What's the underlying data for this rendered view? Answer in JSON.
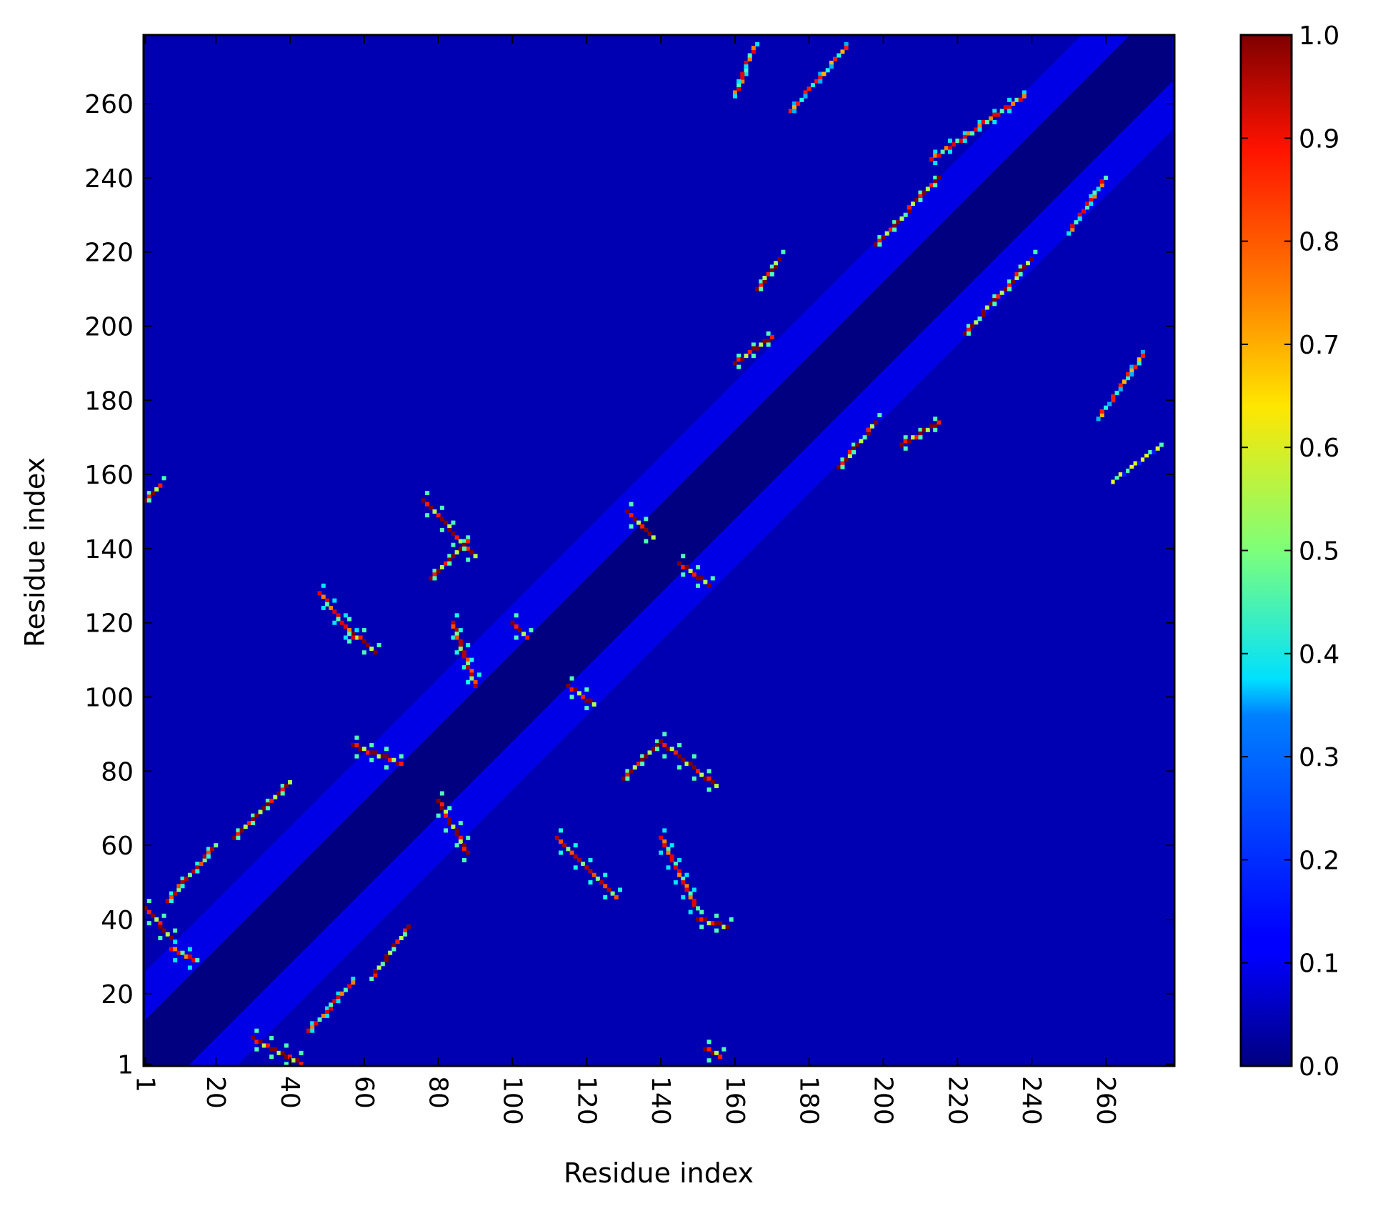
{
  "chart_data": {
    "type": "heatmap",
    "title": "",
    "xlabel": "Residue index",
    "ylabel": "Residue index",
    "n_residues": 278,
    "xlim": [
      1,
      278
    ],
    "ylim": [
      1,
      278
    ],
    "x_ticks": [
      "1",
      "20",
      "40",
      "60",
      "80",
      "100",
      "120",
      "140",
      "160",
      "180",
      "200",
      "220",
      "240",
      "260"
    ],
    "y_ticks": [
      "1",
      "20",
      "40",
      "60",
      "80",
      "100",
      "120",
      "140",
      "160",
      "180",
      "200",
      "220",
      "240",
      "260"
    ],
    "x_tick_values": [
      1,
      20,
      40,
      60,
      80,
      100,
      120,
      140,
      160,
      180,
      200,
      220,
      240,
      260
    ],
    "y_tick_values": [
      1,
      20,
      40,
      60,
      80,
      100,
      120,
      140,
      160,
      180,
      200,
      220,
      240,
      260
    ],
    "x_tick_rotation": 90,
    "colormap": "jet",
    "color_range": [
      0.0,
      1.0
    ],
    "colorbar_ticks": [
      "0.0",
      "0.1",
      "0.2",
      "0.3",
      "0.4",
      "0.5",
      "0.6",
      "0.7",
      "0.8",
      "0.9",
      "1.0"
    ],
    "colorbar_tick_values": [
      0.0,
      0.1,
      0.2,
      0.3,
      0.4,
      0.5,
      0.6,
      0.7,
      0.8,
      0.9,
      1.0
    ],
    "background_value": 0.05,
    "diagonal_band": {
      "inner_halfwidth": 12,
      "outer_halfwidth": 25,
      "inner_value": 0.0,
      "outer_value": 0.1
    },
    "contact_segments": [
      {
        "x": [
          1,
          8
        ],
        "y": [
          43,
          35
        ],
        "value": 1.0
      },
      {
        "x": [
          8,
          15
        ],
        "y": [
          32,
          29
        ],
        "value": 0.9
      },
      {
        "x": [
          7,
          20
        ],
        "y": [
          45,
          60
        ],
        "value": 0.95
      },
      {
        "x": [
          25,
          40
        ],
        "y": [
          62,
          77
        ],
        "value": 1.0
      },
      {
        "x": [
          30,
          43
        ],
        "y": [
          8,
          1
        ],
        "value": 1.0
      },
      {
        "x": [
          45,
          57
        ],
        "y": [
          10,
          23
        ],
        "value": 0.9
      },
      {
        "x": [
          62,
          72
        ],
        "y": [
          24,
          38
        ],
        "value": 1.0
      },
      {
        "x": [
          57,
          70
        ],
        "y": [
          87,
          82
        ],
        "value": 1.0
      },
      {
        "x": [
          80,
          88
        ],
        "y": [
          72,
          58
        ],
        "value": 1.0
      },
      {
        "x": [
          76,
          90
        ],
        "y": [
          153,
          138
        ],
        "value": 1.0
      },
      {
        "x": [
          78,
          88
        ],
        "y": [
          132,
          142
        ],
        "value": 1.0
      },
      {
        "x": [
          55,
          63
        ],
        "y": [
          119,
          112
        ],
        "value": 1.0
      },
      {
        "x": [
          48,
          57
        ],
        "y": [
          128,
          116
        ],
        "value": 0.9
      },
      {
        "x": [
          84,
          90
        ],
        "y": [
          120,
          103
        ],
        "value": 0.95
      },
      {
        "x": [
          100,
          104
        ],
        "y": [
          120,
          116
        ],
        "value": 1.0
      },
      {
        "x": [
          115,
          122
        ],
        "y": [
          103,
          98
        ],
        "value": 1.0
      },
      {
        "x": [
          131,
          138
        ],
        "y": [
          150,
          143
        ],
        "value": 1.0
      },
      {
        "x": [
          145,
          153
        ],
        "y": [
          136,
          130
        ],
        "value": 1.0
      },
      {
        "x": [
          130,
          140
        ],
        "y": [
          78,
          88
        ],
        "value": 1.0
      },
      {
        "x": [
          140,
          155
        ],
        "y": [
          88,
          76
        ],
        "value": 1.0
      },
      {
        "x": [
          112,
          128
        ],
        "y": [
          62,
          46
        ],
        "value": 0.95
      },
      {
        "x": [
          140,
          150
        ],
        "y": [
          62,
          43
        ],
        "value": 0.9
      },
      {
        "x": [
          150,
          158
        ],
        "y": [
          40,
          38
        ],
        "value": 1.0
      },
      {
        "x": [
          152,
          156
        ],
        "y": [
          5,
          3
        ],
        "value": 1.0
      },
      {
        "x": [
          1,
          5
        ],
        "y": [
          153,
          157
        ],
        "value": 1.0
      },
      {
        "x": [
          160,
          170
        ],
        "y": [
          190,
          197
        ],
        "value": 1.0
      },
      {
        "x": [
          166,
          172
        ],
        "y": [
          210,
          218
        ],
        "value": 1.0
      },
      {
        "x": [
          188,
          198
        ],
        "y": [
          162,
          174
        ],
        "value": 1.0
      },
      {
        "x": [
          205,
          215
        ],
        "y": [
          168,
          174
        ],
        "value": 1.0
      },
      {
        "x": [
          198,
          215
        ],
        "y": [
          222,
          240
        ],
        "value": 1.0
      },
      {
        "x": [
          222,
          240
        ],
        "y": [
          198,
          218
        ],
        "value": 1.0
      },
      {
        "x": [
          213,
          238
        ],
        "y": [
          245,
          262
        ],
        "value": 0.9
      },
      {
        "x": [
          250,
          260
        ],
        "y": [
          225,
          240
        ],
        "value": 0.9
      },
      {
        "x": [
          160,
          165
        ],
        "y": [
          262,
          275
        ],
        "value": 0.9
      },
      {
        "x": [
          175,
          190
        ],
        "y": [
          258,
          275
        ],
        "value": 0.85
      },
      {
        "x": [
          258,
          270
        ],
        "y": [
          175,
          192
        ],
        "value": 0.85
      },
      {
        "x": [
          262,
          275
        ],
        "y": [
          158,
          168
        ],
        "value": 0.6
      }
    ]
  }
}
